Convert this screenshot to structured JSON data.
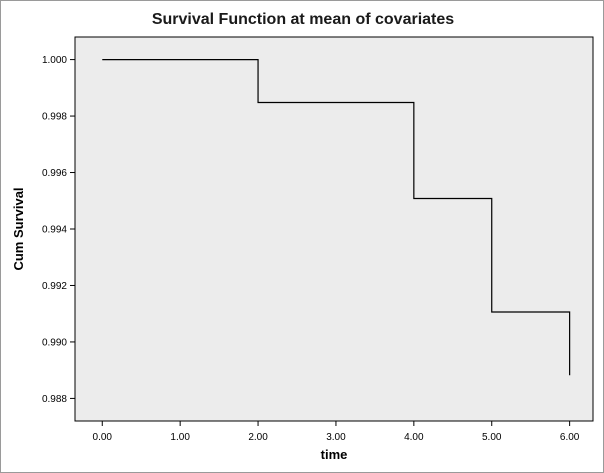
{
  "chart_data": {
    "type": "line",
    "step": true,
    "title": "Survival Function at mean of covariates",
    "xlabel": "time",
    "ylabel": "Cum Survival",
    "xlim": [
      -0.35,
      6.3
    ],
    "ylim": [
      0.9872,
      1.0008
    ],
    "x_ticks": [
      0,
      1,
      2,
      3,
      4,
      5,
      6
    ],
    "x_tick_labels": [
      "0.00",
      "1.00",
      "2.00",
      "3.00",
      "4.00",
      "5.00",
      "6.00"
    ],
    "y_ticks": [
      1.0,
      0.998,
      0.996,
      0.994,
      0.992,
      0.99,
      0.988
    ],
    "y_tick_labels": [
      "1.000",
      "0.998",
      "0.996",
      "0.994",
      "0.992",
      "0.990",
      "0.988"
    ],
    "series": [
      {
        "x": [
          0,
          2,
          4,
          5,
          6
        ],
        "y": [
          1.0,
          0.99848,
          0.99508,
          0.99106,
          0.98882
        ]
      }
    ],
    "grid": false,
    "legend": "none",
    "colors": {
      "plot_bg": "#ececec",
      "line": "#000000",
      "frame": "#9a9a9a"
    }
  }
}
